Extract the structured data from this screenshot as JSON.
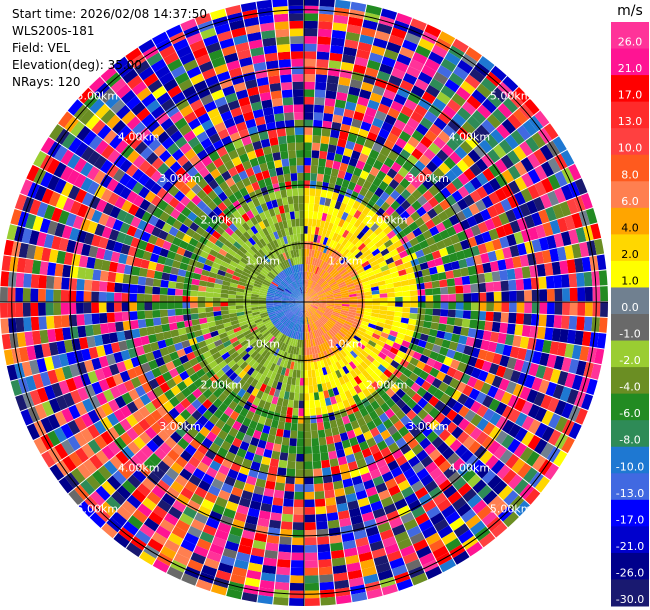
{
  "header": {
    "start_time": "Start time: 2026/02/08 14:37:50",
    "instrument": "WLS200s-181",
    "field": "Field: VEL",
    "elevation": "Elevation(deg): 35.00",
    "nrays": "NRays: 120"
  },
  "colorbar": {
    "unit": "m/s",
    "ticks": [
      "26.0",
      "21.0",
      "17.0",
      "13.0",
      "10.0",
      "8.0",
      "6.0",
      "4.0",
      "2.0",
      "1.0",
      "0.0",
      "-1.0",
      "-2.0",
      "-4.0",
      "-6.0",
      "-8.0",
      "-10.0",
      "-13.0",
      "-17.0",
      "-21.0",
      "-26.0",
      "-30.0"
    ],
    "bins": [
      {
        "min": 26,
        "max": 30,
        "color": "#ff3399"
      },
      {
        "min": 21,
        "max": 26,
        "color": "#ff1493"
      },
      {
        "min": 17,
        "max": 21,
        "color": "#ff0000"
      },
      {
        "min": 13,
        "max": 17,
        "color": "#ff2a2a"
      },
      {
        "min": 10,
        "max": 13,
        "color": "#ff4040"
      },
      {
        "min": 8,
        "max": 10,
        "color": "#ff5a1e"
      },
      {
        "min": 6,
        "max": 8,
        "color": "#ff7f50"
      },
      {
        "min": 4,
        "max": 6,
        "color": "#ffa500"
      },
      {
        "min": 2,
        "max": 4,
        "color": "#ffd700"
      },
      {
        "min": 1,
        "max": 2,
        "color": "#ffff00"
      },
      {
        "min": 0,
        "max": 1,
        "color": "#708090"
      },
      {
        "min": -1,
        "max": 0,
        "color": "#696969"
      },
      {
        "min": -2,
        "max": -1,
        "color": "#9acd32"
      },
      {
        "min": -4,
        "max": -2,
        "color": "#6b8e23"
      },
      {
        "min": -6,
        "max": -4,
        "color": "#228b22"
      },
      {
        "min": -8,
        "max": -6,
        "color": "#2e8b57"
      },
      {
        "min": -10,
        "max": -8,
        "color": "#1e78d2"
      },
      {
        "min": -13,
        "max": -10,
        "color": "#4169e1"
      },
      {
        "min": -17,
        "max": -13,
        "color": "#0000ff"
      },
      {
        "min": -21,
        "max": -17,
        "color": "#0000cd"
      },
      {
        "min": -26,
        "max": -21,
        "color": "#00008b"
      },
      {
        "min": -30,
        "max": -26,
        "color": "#191970"
      }
    ]
  },
  "chart_data": {
    "type": "heatmap",
    "projection": "polar (PPI scan)",
    "field": "VEL",
    "units": "m/s",
    "elevation_deg": 35.0,
    "n_rays": 120,
    "range_rings": [
      {
        "range_km": 1.0,
        "label": "1.0km"
      },
      {
        "range_km": 2.0,
        "label": "2.00km"
      },
      {
        "range_km": 3.0,
        "label": "3.00km"
      },
      {
        "range_km": 4.0,
        "label": "4.00km"
      },
      {
        "range_km": 5.0,
        "label": "5.00km"
      }
    ],
    "max_range_km": 5.2,
    "regions": [
      {
        "range_km": [
          0.0,
          0.6
        ],
        "azimuth_deg": [
          180,
          360
        ],
        "value_ms": -10.0
      },
      {
        "range_km": [
          0.0,
          1.0
        ],
        "azimuth_deg": [
          0,
          180
        ],
        "value_ms": 6.0
      },
      {
        "range_km": [
          1.0,
          2.0
        ],
        "azimuth_deg": [
          0,
          180
        ],
        "value_ms": 2.0
      },
      {
        "range_km": [
          0.6,
          2.0
        ],
        "azimuth_deg": [
          180,
          360
        ],
        "value_ms": -2.0
      },
      {
        "range_km": [
          2.0,
          3.0
        ],
        "azimuth_deg": [
          0,
          360
        ],
        "value_ms": -4.0
      },
      {
        "range_km": [
          3.0,
          5.2
        ],
        "azimuth_deg": [
          300,
          360
        ],
        "value_ms": -17.0
      },
      {
        "range_km": [
          3.0,
          5.2
        ],
        "azimuth_deg": [
          200,
          250
        ],
        "value_ms": 8.0
      },
      {
        "range_km": [
          3.0,
          5.2
        ],
        "azimuth_deg": [
          30,
          60
        ],
        "value_ms": -8.0
      }
    ],
    "note_noise": "outer ranges dominated by speckle across full color range"
  }
}
